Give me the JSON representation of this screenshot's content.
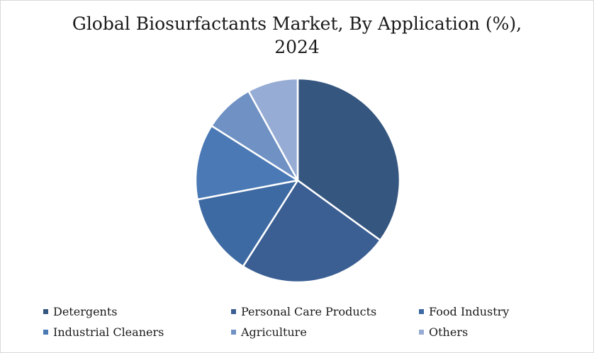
{
  "chart_data": {
    "type": "pie",
    "title": "Global Biosurfactants Market, By Application (%),",
    "title_line2": "2024",
    "legend_position": "bottom",
    "slices": [
      {
        "label": "Detergents",
        "value": 35,
        "color": "#35567f"
      },
      {
        "label": "Personal Care Products",
        "value": 24,
        "color": "#3b5f93"
      },
      {
        "label": "Food Industry",
        "value": 13,
        "color": "#3e6aa3"
      },
      {
        "label": "Industrial Cleaners",
        "value": 12,
        "color": "#4a79b5"
      },
      {
        "label": "Agriculture",
        "value": 8,
        "color": "#6f91c4"
      },
      {
        "label": "Others",
        "value": 8,
        "color": "#97acd4"
      }
    ]
  }
}
